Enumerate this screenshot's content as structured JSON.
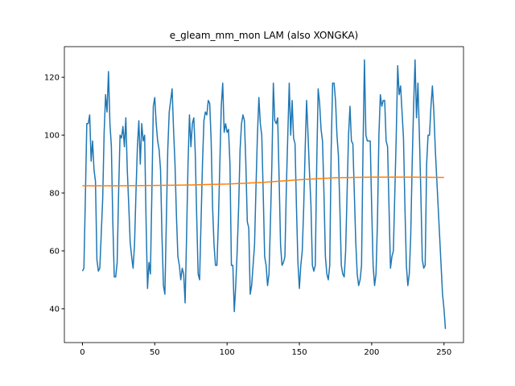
{
  "chart_data": {
    "type": "line",
    "title": "e_gleam_mm_mon LAM (also XONGKA)",
    "x": [
      0,
      1,
      2,
      3,
      4,
      5,
      6,
      7,
      8,
      9,
      10,
      11,
      12,
      13,
      14,
      15,
      16,
      17,
      18,
      19,
      20,
      21,
      22,
      23,
      24,
      25,
      26,
      27,
      28,
      29,
      30,
      31,
      32,
      33,
      34,
      35,
      36,
      37,
      38,
      39,
      40,
      41,
      42,
      43,
      44,
      45,
      46,
      47,
      48,
      49,
      50,
      51,
      52,
      53,
      54,
      55,
      56,
      57,
      58,
      59,
      60,
      61,
      62,
      63,
      64,
      65,
      66,
      67,
      68,
      69,
      70,
      71,
      72,
      73,
      74,
      75,
      76,
      77,
      78,
      79,
      80,
      81,
      82,
      83,
      84,
      85,
      86,
      87,
      88,
      89,
      90,
      91,
      92,
      93,
      94,
      95,
      96,
      97,
      98,
      99,
      100,
      101,
      102,
      103,
      104,
      105,
      106,
      107,
      108,
      109,
      110,
      111,
      112,
      113,
      114,
      115,
      116,
      117,
      118,
      119,
      120,
      121,
      122,
      123,
      124,
      125,
      126,
      127,
      128,
      129,
      130,
      131,
      132,
      133,
      134,
      135,
      136,
      137,
      138,
      139,
      140,
      141,
      142,
      143,
      144,
      145,
      146,
      147,
      148,
      149,
      150,
      151,
      152,
      153,
      154,
      155,
      156,
      157,
      158,
      159,
      160,
      161,
      162,
      163,
      164,
      165,
      166,
      167,
      168,
      169,
      170,
      171,
      172,
      173,
      174,
      175,
      176,
      177,
      178,
      179,
      180,
      181,
      182,
      183,
      184,
      185,
      186,
      187,
      188,
      189,
      190,
      191,
      192,
      193,
      194,
      195,
      196,
      197,
      198,
      199,
      200,
      201,
      202,
      203,
      204,
      205,
      206,
      207,
      208,
      209,
      210,
      211,
      212,
      213,
      214,
      215,
      216,
      217,
      218,
      219,
      220,
      221,
      222,
      223,
      224,
      225,
      226,
      227,
      228,
      229,
      230,
      231,
      232,
      233,
      234,
      235,
      236,
      237,
      238,
      239,
      240,
      241,
      242,
      243,
      244,
      245,
      246,
      247,
      248,
      249,
      250,
      251
    ],
    "series": [
      {
        "color": "#1f77b4",
        "values": [
          53,
          54,
          78,
          104,
          104,
          107,
          91,
          98,
          88,
          84,
          57,
          53,
          54,
          66,
          78,
          101,
          114,
          108,
          122,
          104,
          96,
          70,
          51,
          51,
          56,
          80,
          100,
          99,
          103,
          96,
          106,
          88,
          76,
          63,
          58,
          54,
          62,
          80,
          96,
          105,
          90,
          104,
          98,
          100,
          70,
          47,
          56,
          52,
          80,
          110,
          113,
          104,
          98,
          95,
          88,
          65,
          48,
          45,
          70,
          95,
          108,
          112,
          116,
          102,
          90,
          72,
          58,
          55,
          50,
          54,
          52,
          42,
          65,
          90,
          107,
          96,
          104,
          106,
          94,
          72,
          52,
          50,
          70,
          90,
          105,
          108,
          107,
          112,
          111,
          98,
          75,
          62,
          55,
          55,
          70,
          90,
          110,
          118,
          101,
          104,
          101,
          102,
          90,
          55,
          55,
          39,
          48,
          60,
          75,
          95,
          104,
          107,
          105,
          90,
          70,
          68,
          45,
          48,
          55,
          62,
          82,
          100,
          113,
          104,
          100,
          80,
          58,
          55,
          48,
          52,
          70,
          90,
          118,
          105,
          104,
          106,
          85,
          62,
          55,
          56,
          58,
          82,
          100,
          118,
          100,
          112,
          99,
          97,
          75,
          56,
          47,
          55,
          60,
          75,
          95,
          112,
          100,
          87,
          76,
          55,
          53,
          55,
          90,
          116,
          111,
          102,
          98,
          80,
          58,
          52,
          50,
          55,
          95,
          118,
          118,
          112,
          100,
          93,
          75,
          55,
          52,
          51,
          60,
          80,
          100,
          110,
          98,
          97,
          80,
          63,
          52,
          48,
          50,
          55,
          95,
          126,
          100,
          98,
          98,
          98,
          75,
          55,
          48,
          52,
          70,
          100,
          114,
          110,
          112,
          112,
          98,
          96,
          75,
          54,
          58,
          60,
          80,
          100,
          124,
          114,
          117,
          108,
          99,
          75,
          55,
          48,
          52,
          65,
          90,
          110,
          126,
          106,
          118,
          100,
          80,
          57,
          54,
          55,
          90,
          100,
          100,
          110,
          117,
          108,
          95,
          85,
          75,
          65,
          55,
          45,
          40,
          33
        ]
      },
      {
        "color": "#ff7f0e",
        "x": [
          0,
          25,
          50,
          75,
          100,
          125,
          150,
          175,
          200,
          225,
          250
        ],
        "values": [
          82.5,
          82.5,
          82.6,
          82.8,
          83.1,
          83.7,
          84.6,
          85.3,
          85.5,
          85.5,
          85.4
        ]
      }
    ],
    "xlim": [
      -12.5,
      263.5
    ],
    "ylim": [
      28.3,
      130.6
    ],
    "xticks": [
      0,
      50,
      100,
      150,
      200,
      250
    ],
    "yticks": [
      40,
      60,
      80,
      100,
      120
    ]
  }
}
